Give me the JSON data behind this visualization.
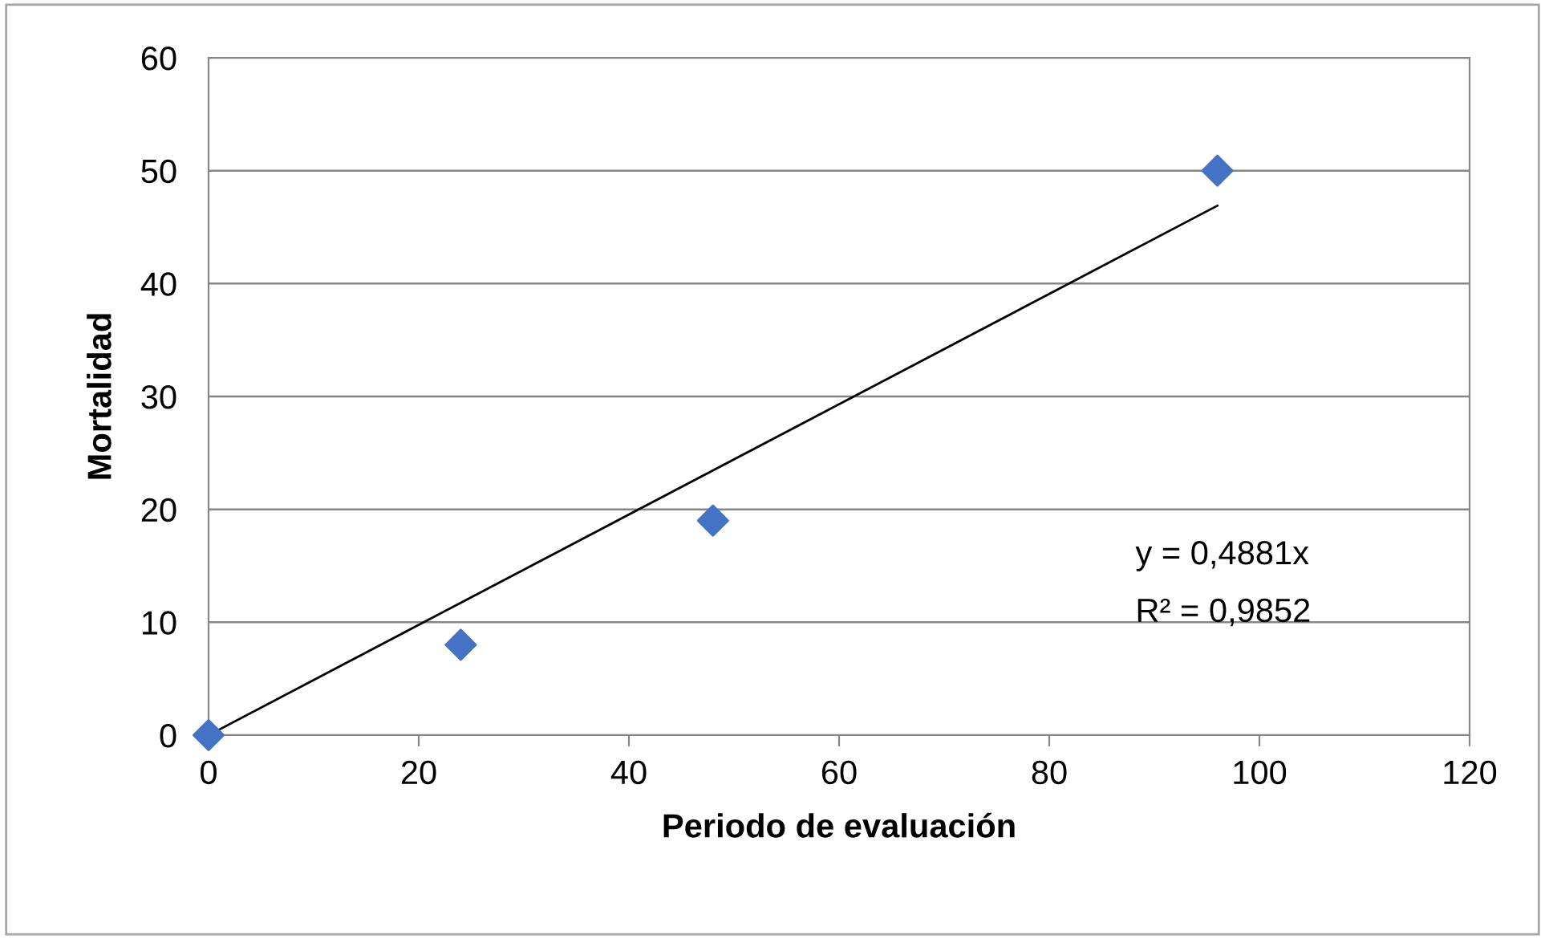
{
  "chart_data": {
    "type": "scatter",
    "xlabel": "Periodo de evaluación",
    "ylabel": "Mortalidad",
    "series": [
      {
        "color": "#4472c4",
        "marker": "diamond",
        "x": [
          0,
          24,
          48,
          96
        ],
        "values": [
          0,
          8,
          19,
          50
        ]
      },
      {
        "type": "line",
        "color": "#000000",
        "marker": "none",
        "line_style": "solid",
        "x": [
          0,
          96
        ],
        "values": [
          0,
          46.9
        ]
      }
    ],
    "annotations": [
      "y = 0,4881x",
      "R² = 0,9852"
    ],
    "xlim": [
      0,
      120
    ],
    "xticks": [
      0,
      20,
      40,
      60,
      80,
      100,
      120
    ],
    "ylim": [
      0,
      60
    ],
    "yticks": [
      0,
      10,
      20,
      30,
      40,
      50,
      60
    ],
    "grid": "y",
    "legend": false
  }
}
